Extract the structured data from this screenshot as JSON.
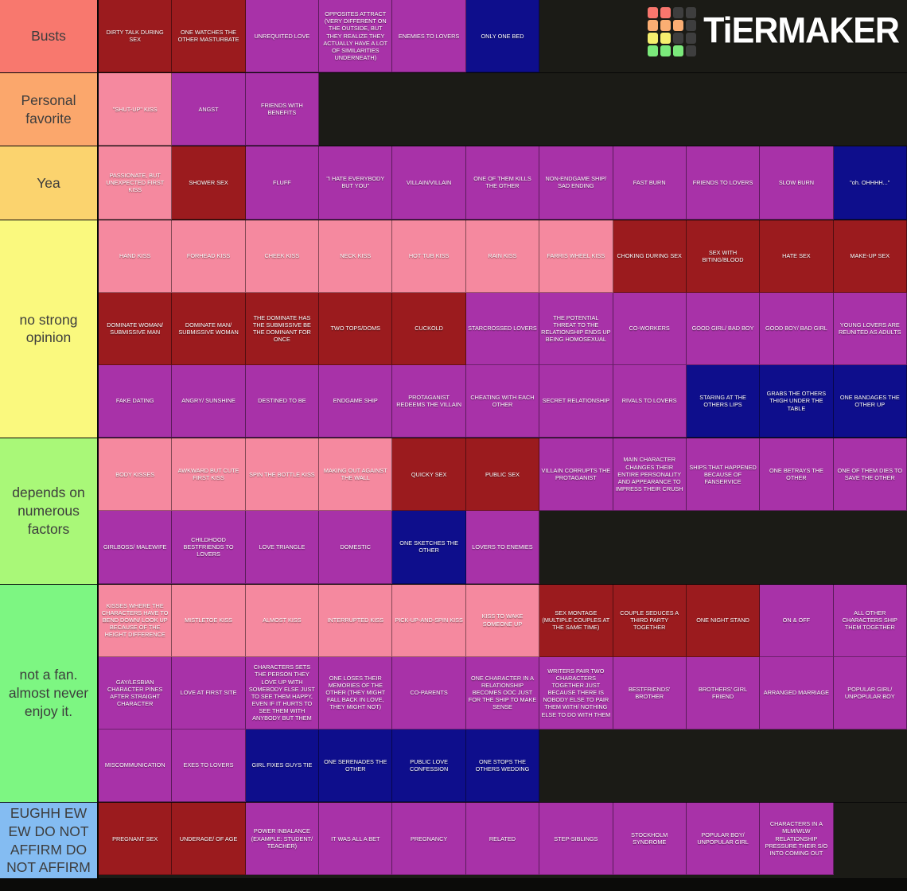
{
  "logo": {
    "text": "TiERMAKER",
    "grid": [
      [
        "red",
        "red",
        "dark",
        "dark"
      ],
      [
        "orange",
        "orange",
        "orange",
        "dark"
      ],
      [
        "yellow",
        "yellow",
        "dark",
        "dark"
      ],
      [
        "green",
        "green",
        "green",
        "dark"
      ]
    ],
    "grid_colors": {
      "red": "#F8766D",
      "orange": "#FBAE73",
      "yellow": "#F6EF6E",
      "green": "#7BE97B",
      "dark": "#3E3E3E"
    }
  },
  "palette": {
    "pink": "#F5899F",
    "red": "#9B1B1E",
    "magenta": "#A832A8",
    "navy": "#0E0E8C"
  },
  "tiers": [
    {
      "label": "Busts",
      "color": "#F8786E",
      "items": [
        {
          "label": "DIRTY TALK DURING SEX",
          "color": "red"
        },
        {
          "label": "ONE WATCHES THE OTHER MASTURBATE",
          "color": "red"
        },
        {
          "label": "UNREQUITED LOVE",
          "color": "magenta"
        },
        {
          "label": "OPPOSITES ATTRACT (VERY DIFFERENT ON THE OUTSIDE, BUT THEY REALIZE THEY ACTUALLY HAVE A LOT OF SIMILARITIES UNDERNEATH)",
          "color": "magenta"
        },
        {
          "label": "ENEMIES TO LOVERS",
          "color": "magenta"
        },
        {
          "label": "ONLY ONE BED",
          "color": "navy"
        }
      ]
    },
    {
      "label": "Personal favorite",
      "color": "#FBA76C",
      "items": [
        {
          "label": "\"SHUT-UP\" KISS",
          "color": "pink"
        },
        {
          "label": "ANGST",
          "color": "magenta"
        },
        {
          "label": "FRIENDS WITH BENEFITS",
          "color": "magenta"
        }
      ]
    },
    {
      "label": "Yea",
      "color": "#FBD36E",
      "items": [
        {
          "label": "PASSIONATE, BUT UNEXPECTED FIRST KISS",
          "color": "pink"
        },
        {
          "label": "SHOWER SEX",
          "color": "red"
        },
        {
          "label": "FLUFF",
          "color": "magenta"
        },
        {
          "label": "\"I HATE EVERYBODY BUT YOU\"",
          "color": "magenta"
        },
        {
          "label": "VILLAIN/VILLAIN",
          "color": "magenta"
        },
        {
          "label": "ONE OF THEM KILLS THE OTHER",
          "color": "magenta"
        },
        {
          "label": "NON-ENDGAME SHIP/ SAD ENDING",
          "color": "magenta"
        },
        {
          "label": "FAST BURN",
          "color": "magenta"
        },
        {
          "label": "FRIENDS TO LOVERS",
          "color": "magenta"
        },
        {
          "label": "SLOW BURN",
          "color": "magenta"
        },
        {
          "label": "\"oh. OHHHH...\"",
          "color": "navy"
        }
      ]
    },
    {
      "label": "no strong opinion",
      "color": "#FAF97E",
      "items": [
        {
          "label": "HAND KISS",
          "color": "pink"
        },
        {
          "label": "FORHEAD KISS",
          "color": "pink"
        },
        {
          "label": "CHEEK KISS",
          "color": "pink"
        },
        {
          "label": "NECK KISS",
          "color": "pink"
        },
        {
          "label": "HOT TUB KISS",
          "color": "pink"
        },
        {
          "label": "RAIN KISS",
          "color": "pink"
        },
        {
          "label": "FARRIS WHEEL KISS",
          "color": "pink"
        },
        {
          "label": "CHOKING DURING SEX",
          "color": "red"
        },
        {
          "label": "SEX WITH BITING/BLOOD",
          "color": "red"
        },
        {
          "label": "HATE SEX",
          "color": "red"
        },
        {
          "label": "MAKE-UP SEX",
          "color": "red"
        },
        {
          "label": "DOMINATE WOMAN/ SUBMISSIVE MAN",
          "color": "red"
        },
        {
          "label": "DOMINATE MAN/ SUBMISSIVE WOMAN",
          "color": "red"
        },
        {
          "label": "THE DOMINATE HAS THE SUBMISSIVE BE THE DOMINANT FOR ONCE",
          "color": "red"
        },
        {
          "label": "TWO TOPS/DOMS",
          "color": "red"
        },
        {
          "label": "CUCKOLD",
          "color": "red"
        },
        {
          "label": "STARCROSSED LOVERS",
          "color": "magenta"
        },
        {
          "label": "THE POTENTIAL THREAT TO THE RELATIONSHIP ENDS UP BEING HOMOSEXUAL",
          "color": "magenta"
        },
        {
          "label": "CO-WORKERS",
          "color": "magenta"
        },
        {
          "label": "GOOD GIRL/ BAD BOY",
          "color": "magenta"
        },
        {
          "label": "GOOD BOY/ BAD GIRL",
          "color": "magenta"
        },
        {
          "label": "YOUNG LOVERS ARE REUNITED AS ADULTS",
          "color": "magenta"
        },
        {
          "label": "FAKE DATING",
          "color": "magenta"
        },
        {
          "label": "ANGRY/ SUNSHINE",
          "color": "magenta"
        },
        {
          "label": "DESTINED TO BE",
          "color": "magenta"
        },
        {
          "label": "ENDGAME SHIP",
          "color": "magenta"
        },
        {
          "label": "PROTAGANIST REDEEMS THE VILLAIN",
          "color": "magenta"
        },
        {
          "label": "CHEATING WITH EACH OTHER",
          "color": "magenta"
        },
        {
          "label": "SECRET RELATIONSHIP",
          "color": "magenta"
        },
        {
          "label": "RIVALS TO LOVERS",
          "color": "magenta"
        },
        {
          "label": "STARING AT THE OTHERS LIPS",
          "color": "navy"
        },
        {
          "label": "GRABS THE OTHERS THIGH UNDER THE TABLE",
          "color": "navy"
        },
        {
          "label": "ONE BANDAGES THE OTHER UP",
          "color": "navy"
        }
      ]
    },
    {
      "label": "depends on numerous factors",
      "color": "#A9F878",
      "items": [
        {
          "label": "BODY KISSES",
          "color": "pink"
        },
        {
          "label": "AWKWARD BUT CUTE FIRST KISS",
          "color": "pink"
        },
        {
          "label": "SPIN THE BOTTLE KISS",
          "color": "pink"
        },
        {
          "label": "MAKING OUT AGAINST THE WALL",
          "color": "pink"
        },
        {
          "label": "QUICKY SEX",
          "color": "red"
        },
        {
          "label": "PUBLIC SEX",
          "color": "red"
        },
        {
          "label": "VILLAIN CORRUPTS THE PROTAGANIST",
          "color": "magenta"
        },
        {
          "label": "MAIN CHARACTER CHANGES THEIR ENTIRE PERSONALITY AND APPEARANCE TO IMPRESS THEIR CRUSH",
          "color": "magenta"
        },
        {
          "label": "SHIPS THAT HAPPENED BECAUSE OF FANSERVICE",
          "color": "magenta"
        },
        {
          "label": "ONE BETRAYS THE OTHER",
          "color": "magenta"
        },
        {
          "label": "ONE OF THEM DIES TO SAVE THE OTHER",
          "color": "magenta"
        },
        {
          "label": "GIRLBOSS/ MALEWIFE",
          "color": "magenta"
        },
        {
          "label": "CHILDHOOD BESTFRIENDS TO LOVERS",
          "color": "magenta"
        },
        {
          "label": "LOVE TRIANGLE",
          "color": "magenta"
        },
        {
          "label": "DOMESTIC",
          "color": "magenta"
        },
        {
          "label": "ONE SKETCHES THE OTHER",
          "color": "navy"
        },
        {
          "label": "LOVERS TO ENEMIES",
          "color": "magenta"
        }
      ]
    },
    {
      "label": "not a fan. almost never enjoy it.",
      "color": "#7DF682",
      "items": [
        {
          "label": "KISSES WHERE THE CHARACTERS HAVE TO BEND DOWN/ LOOK UP BECAUSE OF THE HEIGHT DIFFERENCE",
          "color": "pink"
        },
        {
          "label": "MISTLETOE KISS",
          "color": "pink"
        },
        {
          "label": "ALMOST KISS",
          "color": "pink"
        },
        {
          "label": "INTERRUPTED KISS",
          "color": "pink"
        },
        {
          "label": "PICK-UP-AND-SPIN KISS",
          "color": "pink"
        },
        {
          "label": "KISS TO WAKE SOMEONE UP",
          "color": "pink"
        },
        {
          "label": "SEX MONTAGE (MULTIPLE COUPLES AT THE SAME TIME)",
          "color": "red"
        },
        {
          "label": "COUPLE SEDUCES A THIRD PARTY TOGETHER",
          "color": "red"
        },
        {
          "label": "ONE NIGHT STAND",
          "color": "red"
        },
        {
          "label": "ON & OFF",
          "color": "magenta"
        },
        {
          "label": "ALL OTHER CHARACTERS SHIP THEM TOGETHER",
          "color": "magenta"
        },
        {
          "label": "GAY/LESBIAN CHARACTER PINES AFTER STRAIGHT CHARACTER",
          "color": "magenta"
        },
        {
          "label": "LOVE AT FIRST SITE",
          "color": "magenta"
        },
        {
          "label": "CHARACTERS SETS THE PERSON THEY LOVE UP WITH SOMEBODY ELSE JUST TO SEE THEM HAPPY, EVEN IF IT HURTS TO SEE THEM WITH ANYBODY BUT THEM",
          "color": "magenta"
        },
        {
          "label": "ONE LOSES THEIR MEMORIES OF THE OTHER (THEY MIGHT FALL BACK IN LOVE, THEY MIGHT NOT)",
          "color": "magenta"
        },
        {
          "label": "CO-PARENTS",
          "color": "magenta"
        },
        {
          "label": "ONE CHARACTER IN A RELATIONSHIP BECOMES OOC JUST FOR THE SHIP TO MAKE SENSE",
          "color": "magenta"
        },
        {
          "label": "WRITERS PAIR TWO CHARACTERS TOGETHER JUST BECAUSE THERE IS NOBODY ELSE TO PAIR THEM WITH/ NOTHING ELSE TO DO WITH THEM",
          "color": "magenta"
        },
        {
          "label": "BESTFRIENDS' BROTHER",
          "color": "magenta"
        },
        {
          "label": "BROTHERS' GIRL FRIEND",
          "color": "magenta"
        },
        {
          "label": "ARRANGED MARRIAGE",
          "color": "magenta"
        },
        {
          "label": "POPULAR GIRL/ UNPOPULAR BOY",
          "color": "magenta"
        },
        {
          "label": "MISCOMMUNICATION",
          "color": "magenta"
        },
        {
          "label": "EXES TO LOVERS",
          "color": "magenta"
        },
        {
          "label": "GIRL FIXES GUYS TIE",
          "color": "navy"
        },
        {
          "label": "ONE SERENADES THE OTHER",
          "color": "navy"
        },
        {
          "label": "PUBLIC LOVE CONFESSION",
          "color": "navy"
        },
        {
          "label": "ONE STOPS THE OTHERS WEDDING",
          "color": "navy"
        }
      ]
    },
    {
      "label": "EUGHH EW EW DO NOT AFFIRM DO NOT AFFIRM",
      "color": "#84BCF2",
      "items": [
        {
          "label": "PREGNANT SEX",
          "color": "red"
        },
        {
          "label": "UNDERAGE/ OF AGE",
          "color": "red"
        },
        {
          "label": "POWER INBALANCE (EXAMPLE: STUDENT/ TEACHER)",
          "color": "magenta"
        },
        {
          "label": "IT WAS ALL A BET",
          "color": "magenta"
        },
        {
          "label": "PREGNANCY",
          "color": "magenta"
        },
        {
          "label": "RELATED",
          "color": "magenta"
        },
        {
          "label": "STEP-SIBLINGS",
          "color": "magenta"
        },
        {
          "label": "STOCKHOLM SYNDROME",
          "color": "magenta"
        },
        {
          "label": "POPULAR BOY/ UNPOPULAR GIRL",
          "color": "magenta"
        },
        {
          "label": "CHARACTERS IN A MLM/WLW RELATIONSHIP PRESSURE THEIR S/O INTO COMING OUT",
          "color": "magenta"
        }
      ]
    }
  ]
}
